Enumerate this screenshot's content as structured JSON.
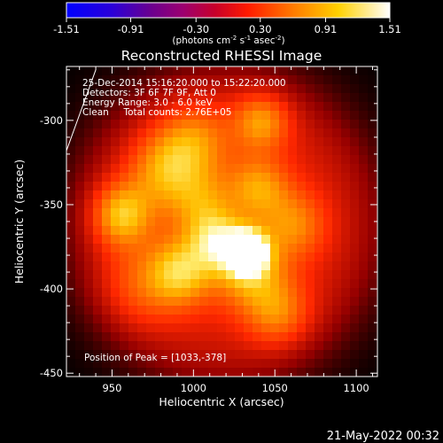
{
  "chart_data": {
    "type": "heatmap",
    "title": "Reconstructed RHESSI Image",
    "xlabel": "Heliocentric X (arcsec)",
    "ylabel": "Heliocentric Y (arcsec)",
    "xlim": [
      922,
      1113
    ],
    "ylim": [
      -452,
      -268
    ],
    "x_ticks": [
      950,
      1000,
      1050,
      1100
    ],
    "y_ticks": [
      -300,
      -350,
      -400,
      -450
    ],
    "colorbar": {
      "min": -1.51,
      "max": 1.51,
      "ticks": [
        "-1.51",
        "-0.91",
        "-0.30",
        "0.30",
        "0.91",
        "1.51"
      ],
      "label_main": "(photons cm",
      "label_exp1": "-2",
      "label_mid": " s",
      "label_exp2": "-1",
      "label_end": " asec",
      "label_exp3": "-2",
      "label_close": ")"
    },
    "annotations": [
      "25-Dec-2014 15:16:20.000 to 15:22:20.000",
      "Detectors: 3F 6F 7F 9F, Att 0",
      "Energy Range: 3.0 - 6.0 keV",
      "Clean     Total counts: 2.76E+05"
    ],
    "peak_label": "Position of Peak = [1033,-378]",
    "peak": {
      "x": 1033,
      "y": -378
    },
    "sources": [
      {
        "x": 1033,
        "y": -378,
        "peak": 1.0,
        "sigma": 8
      },
      {
        "x": 1015,
        "y": -372,
        "peak": 0.45,
        "sigma": 12
      },
      {
        "x": 1035,
        "y": -390,
        "peak": 0.4,
        "sigma": 15
      },
      {
        "x": 955,
        "y": -356,
        "peak": 0.5,
        "sigma": 13
      },
      {
        "x": 992,
        "y": -390,
        "peak": 0.45,
        "sigma": 14
      },
      {
        "x": 982,
        "y": -330,
        "peak": 0.35,
        "sigma": 16
      },
      {
        "x": 1000,
        "y": -312,
        "peak": 0.32,
        "sigma": 16
      },
      {
        "x": 1042,
        "y": -300,
        "peak": 0.4,
        "sigma": 12
      },
      {
        "x": 1040,
        "y": -340,
        "peak": 0.35,
        "sigma": 13
      },
      {
        "x": 1062,
        "y": -362,
        "peak": 0.3,
        "sigma": 14
      },
      {
        "x": 1052,
        "y": -415,
        "peak": 0.32,
        "sigma": 14
      },
      {
        "x": 1005,
        "y": -350,
        "peak": 0.28,
        "sigma": 14
      },
      {
        "x": 965,
        "y": -400,
        "peak": 0.22,
        "sigma": 18
      }
    ],
    "background": 0.35,
    "background_ring": {
      "cx": 1020,
      "cy": -362,
      "radius": 90,
      "falloff": 12
    },
    "limb_line": [
      [
        922,
        -318
      ],
      [
        940,
        -270
      ]
    ]
  },
  "timestamp": "21-May-2022 00:32"
}
